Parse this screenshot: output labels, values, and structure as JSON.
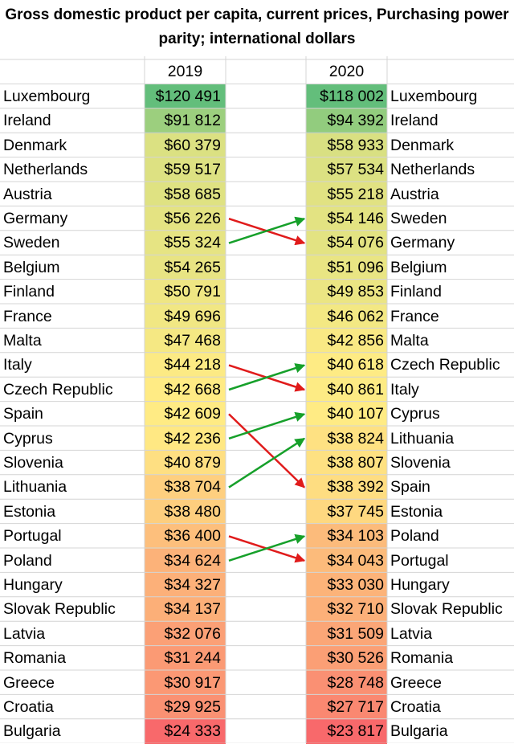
{
  "title": "Gross domestic product per capita, current prices, Purchasing power parity; international dollars",
  "year_left": "2019",
  "year_right": "2020",
  "colors": {
    "high": "#63be7b",
    "mid": "#ffeb84",
    "low": "#f8696b",
    "up_arrow": "#16a02a",
    "down_arrow": "#e01b1b"
  },
  "chart_data": {
    "type": "table",
    "title": "Gross domestic product per capita, current prices, Purchasing power parity; international dollars",
    "columns": [
      "2019",
      "2020"
    ],
    "rows_2019": [
      {
        "country": "Luxembourg",
        "value": 120491,
        "label": "$120 491"
      },
      {
        "country": "Ireland",
        "value": 91812,
        "label": "$91 812"
      },
      {
        "country": "Denmark",
        "value": 60379,
        "label": "$60 379"
      },
      {
        "country": "Netherlands",
        "value": 59517,
        "label": "$59 517"
      },
      {
        "country": "Austria",
        "value": 58685,
        "label": "$58 685"
      },
      {
        "country": "Germany",
        "value": 56226,
        "label": "$56 226"
      },
      {
        "country": "Sweden",
        "value": 55324,
        "label": "$55 324"
      },
      {
        "country": "Belgium",
        "value": 54265,
        "label": "$54 265"
      },
      {
        "country": "Finland",
        "value": 50791,
        "label": "$50 791"
      },
      {
        "country": "France",
        "value": 49696,
        "label": "$49 696"
      },
      {
        "country": "Malta",
        "value": 47468,
        "label": "$47 468"
      },
      {
        "country": "Italy",
        "value": 44218,
        "label": "$44 218"
      },
      {
        "country": "Czech Republic",
        "value": 42668,
        "label": "$42 668"
      },
      {
        "country": "Spain",
        "value": 42609,
        "label": "$42 609"
      },
      {
        "country": "Cyprus",
        "value": 42236,
        "label": "$42 236"
      },
      {
        "country": "Slovenia",
        "value": 40879,
        "label": "$40 879"
      },
      {
        "country": "Lithuania",
        "value": 38704,
        "label": "$38 704"
      },
      {
        "country": "Estonia",
        "value": 38480,
        "label": "$38 480"
      },
      {
        "country": "Portugal",
        "value": 36400,
        "label": "$36 400"
      },
      {
        "country": "Poland",
        "value": 34624,
        "label": "$34 624"
      },
      {
        "country": "Hungary",
        "value": 34327,
        "label": "$34 327"
      },
      {
        "country": "Slovak Republic",
        "value": 34137,
        "label": "$34 137"
      },
      {
        "country": "Latvia",
        "value": 32076,
        "label": "$32 076"
      },
      {
        "country": "Romania",
        "value": 31244,
        "label": "$31 244"
      },
      {
        "country": "Greece",
        "value": 30917,
        "label": "$30 917"
      },
      {
        "country": "Croatia",
        "value": 29925,
        "label": "$29 925"
      },
      {
        "country": "Bulgaria",
        "value": 24333,
        "label": "$24 333"
      }
    ],
    "rows_2020": [
      {
        "country": "Luxembourg",
        "value": 118002,
        "label": "$118 002"
      },
      {
        "country": "Ireland",
        "value": 94392,
        "label": "$94 392"
      },
      {
        "country": "Denmark",
        "value": 58933,
        "label": "$58 933"
      },
      {
        "country": "Netherlands",
        "value": 57534,
        "label": "$57 534"
      },
      {
        "country": "Austria",
        "value": 55218,
        "label": "$55 218"
      },
      {
        "country": "Sweden",
        "value": 54146,
        "label": "$54 146"
      },
      {
        "country": "Germany",
        "value": 54076,
        "label": "$54 076"
      },
      {
        "country": "Belgium",
        "value": 51096,
        "label": "$51 096"
      },
      {
        "country": "Finland",
        "value": 49853,
        "label": "$49 853"
      },
      {
        "country": "France",
        "value": 46062,
        "label": "$46 062"
      },
      {
        "country": "Malta",
        "value": 42856,
        "label": "$42 856"
      },
      {
        "country": "Czech Republic",
        "value": 40618,
        "label": "$40 618"
      },
      {
        "country": "Italy",
        "value": 40861,
        "label": "$40 861"
      },
      {
        "country": "Cyprus",
        "value": 40107,
        "label": "$40 107"
      },
      {
        "country": "Lithuania",
        "value": 38824,
        "label": "$38 824"
      },
      {
        "country": "Slovenia",
        "value": 38807,
        "label": "$38 807"
      },
      {
        "country": "Spain",
        "value": 38392,
        "label": "$38 392"
      },
      {
        "country": "Estonia",
        "value": 37745,
        "label": "$37 745"
      },
      {
        "country": "Poland",
        "value": 34103,
        "label": "$34 103"
      },
      {
        "country": "Portugal",
        "value": 34043,
        "label": "$34 043"
      },
      {
        "country": "Hungary",
        "value": 33030,
        "label": "$33 030"
      },
      {
        "country": "Slovak Republic",
        "value": 32710,
        "label": "$32 710"
      },
      {
        "country": "Latvia",
        "value": 31509,
        "label": "$31 509"
      },
      {
        "country": "Romania",
        "value": 30526,
        "label": "$30 526"
      },
      {
        "country": "Greece",
        "value": 28748,
        "label": "$28 748"
      },
      {
        "country": "Croatia",
        "value": 27717,
        "label": "$27 717"
      },
      {
        "country": "Bulgaria",
        "value": 23817,
        "label": "$23 817"
      }
    ],
    "rank_changes": [
      {
        "from": "Germany",
        "to": "Germany",
        "direction": "down"
      },
      {
        "from": "Sweden",
        "to": "Sweden",
        "direction": "up"
      },
      {
        "from": "Italy",
        "to": "Italy",
        "direction": "down"
      },
      {
        "from": "Czech Republic",
        "to": "Czech Republic",
        "direction": "up"
      },
      {
        "from": "Spain",
        "to": "Spain",
        "direction": "down"
      },
      {
        "from": "Cyprus",
        "to": "Cyprus",
        "direction": "up"
      },
      {
        "from": "Lithuania",
        "to": "Lithuania",
        "direction": "up"
      },
      {
        "from": "Portugal",
        "to": "Portugal",
        "direction": "down"
      },
      {
        "from": "Poland",
        "to": "Poland",
        "direction": "up"
      }
    ]
  }
}
